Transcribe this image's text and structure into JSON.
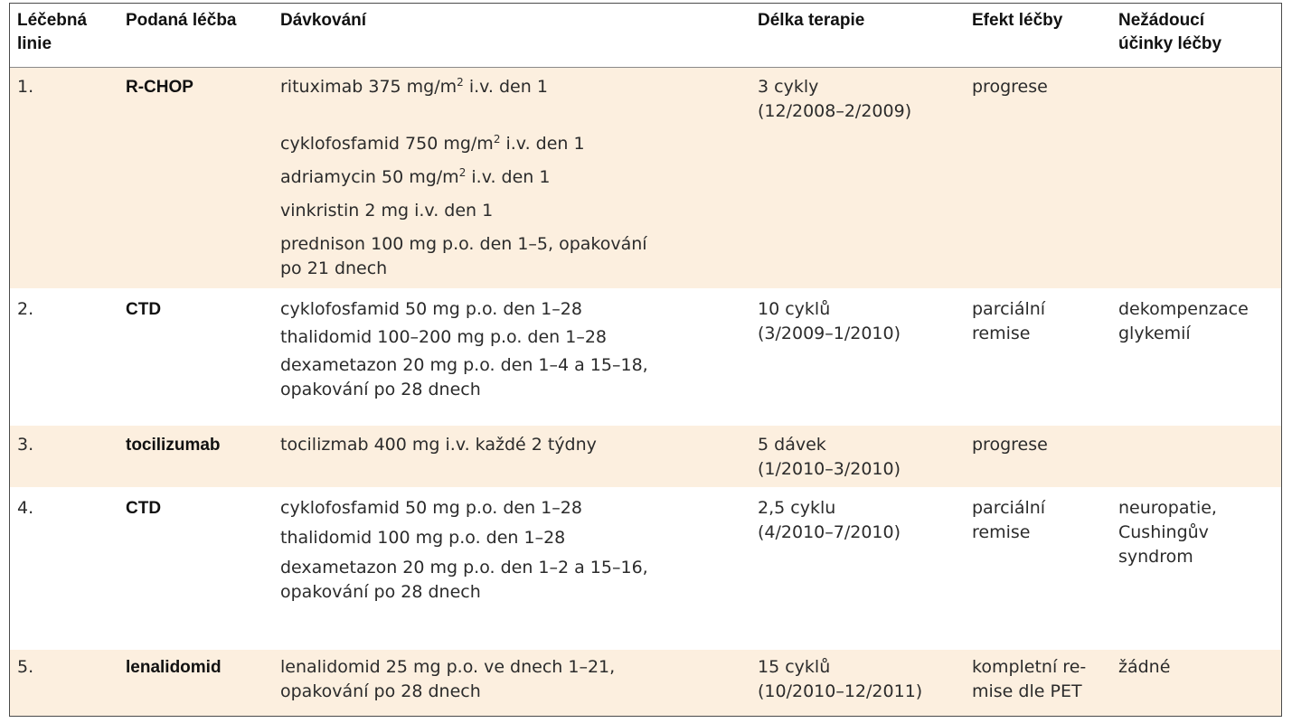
{
  "header": {
    "col1": [
      "Léčebná",
      "linie"
    ],
    "col2": "Podaná léčba",
    "col3": "Dávkování",
    "col4": "Délka terapie",
    "col5": "Efekt léčby",
    "col6": [
      "Nežádoucí",
      "účinky léčby"
    ]
  },
  "rows": [
    {
      "line": "1.",
      "treatment": "R-CHOP",
      "dosing": [
        {
          "pre": "rituximab 375 mg/m",
          "sup": "2",
          "post": " i.v. den 1"
        },
        {
          "pre": "cyklofosfamid 750 mg/m",
          "sup": "2",
          "post": " i.v. den 1"
        },
        {
          "pre": "adriamycin 50 mg/m",
          "sup": "2",
          "post": " i.v. den 1"
        },
        {
          "text": "vinkristin 2 mg i.v. den 1"
        },
        {
          "text": "prednison 100 mg p.o. den 1–5, opakování"
        },
        {
          "text": "po 21 dnech"
        }
      ],
      "duration": [
        "3 cykly",
        "(12/2008–2/2009)"
      ],
      "effect": [
        "progrese"
      ],
      "side_effects": []
    },
    {
      "line": "2.",
      "treatment": "CTD",
      "dosing": [
        {
          "text": "cyklofosfamid 50 mg p.o. den 1–28"
        },
        {
          "text": "thalidomid 100–200 mg p.o. den 1–28"
        },
        {
          "text": "dexametazon 20 mg p.o. den 1–4 a 15–18,"
        },
        {
          "text": "opakování po 28 dnech"
        }
      ],
      "duration": [
        "10 cyklů",
        "(3/2009–1/2010)"
      ],
      "effect": [
        "parciální",
        "remise"
      ],
      "side_effects": [
        "dekompenzace",
        "glykemií"
      ]
    },
    {
      "line": "3.",
      "treatment": "tocilizumab",
      "dosing": [
        {
          "text": "tocilizmab 400 mg i.v. každé 2 týdny"
        }
      ],
      "duration": [
        "5 dávek",
        "(1/2010–3/2010)"
      ],
      "effect": [
        "progrese"
      ],
      "side_effects": []
    },
    {
      "line": "4.",
      "treatment": "CTD",
      "dosing": [
        {
          "text": "cyklofosfamid 50 mg p.o. den 1–28"
        },
        {
          "text": "thalidomid 100 mg p.o. den 1–28"
        },
        {
          "text": "dexametazon 20 mg p.o. den 1–2 a 15–16,"
        },
        {
          "text": "opakování po 28 dnech"
        }
      ],
      "duration": [
        "2,5 cyklu",
        "(4/2010–7/2010)"
      ],
      "effect": [
        "parciální",
        "remise"
      ],
      "side_effects": [
        "neuropatie,",
        "Cushingův",
        "syndrom"
      ]
    },
    {
      "line": "5.",
      "treatment": "lenalidomid",
      "dosing": [
        {
          "text": "lenalidomid 25 mg p.o. ve dnech 1–21,"
        },
        {
          "text": "opakování po 28 dnech"
        }
      ],
      "duration": [
        "15 cyklů",
        "(10/2010–12/2011)"
      ],
      "effect": [
        "kompletní re-",
        "mise dle PET"
      ],
      "side_effects": [
        "žádné"
      ]
    }
  ]
}
